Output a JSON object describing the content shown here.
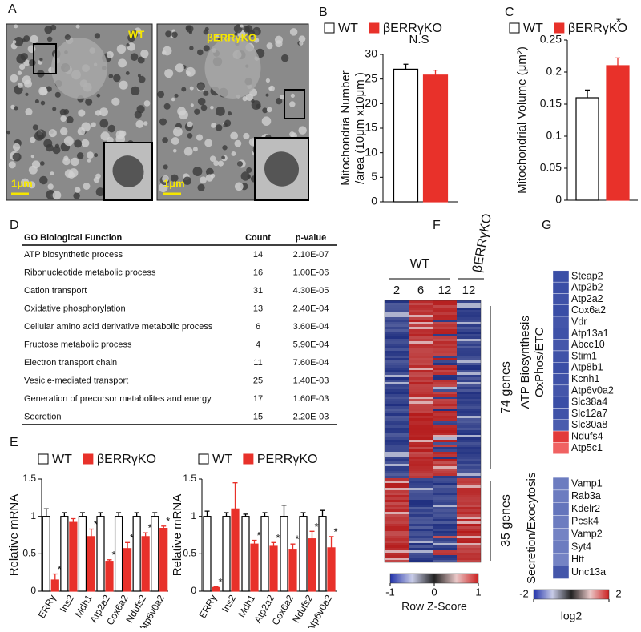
{
  "panel_labels": [
    "A",
    "B",
    "C",
    "D",
    "E",
    "F",
    "G"
  ],
  "micrographs": {
    "labels": [
      "WT",
      "βERRγKO"
    ],
    "scale_bar": "1μm"
  },
  "chart_data": [
    {
      "type": "bar",
      "legend": true,
      "categories": [
        null
      ],
      "ylabel": [
        "Mitochondria Number",
        "/area (10μm x10μm )"
      ],
      "annotation": "N.S",
      "series": [
        {
          "name": "WT",
          "color": "#ffffff",
          "values": [
            27
          ],
          "errors": [
            1
          ]
        },
        {
          "name": "βERRγKO",
          "color": "#e8312a",
          "values": [
            25.8
          ],
          "errors": [
            1
          ]
        }
      ],
      "ylim": [
        0,
        30
      ],
      "yticks": [
        0,
        5,
        10,
        15,
        20,
        25,
        30
      ]
    },
    {
      "type": "bar",
      "legend": true,
      "categories": [
        null
      ],
      "ylabel": [
        "Mitochondrial Volume (μm²)"
      ],
      "annotation": "*",
      "series": [
        {
          "name": "WT",
          "color": "#ffffff",
          "values": [
            0.16
          ],
          "errors": [
            0.012
          ]
        },
        {
          "name": "βERRγKO",
          "color": "#e8312a",
          "values": [
            0.21
          ],
          "errors": [
            0.012
          ]
        }
      ],
      "ylim": [
        0,
        0.25
      ],
      "yticks": [
        0,
        0.05,
        0.1,
        0.15,
        0.2,
        0.25
      ]
    },
    {
      "type": "bar",
      "legend": true,
      "categories": [
        "ERRγ",
        "Ins2",
        "Mdh1",
        "Atp2a2",
        "Cox6a2",
        "Ndufs2",
        "Atp6v0a2"
      ],
      "ylabel": [
        "Relative mRNA"
      ],
      "series": [
        {
          "name": "WT",
          "color": "#ffffff",
          "values": [
            1,
            1,
            1,
            1,
            1,
            1,
            1
          ],
          "errors": [
            0.1,
            0.05,
            0.05,
            0.05,
            0.05,
            0.05,
            0.05
          ]
        },
        {
          "name": "βERRγKO",
          "color": "#e8312a",
          "values": [
            0.15,
            0.92,
            0.73,
            0.4,
            0.57,
            0.73,
            0.84
          ],
          "errors": [
            0.08,
            0.05,
            0.1,
            0.02,
            0.08,
            0.05,
            0.03
          ],
          "significance": [
            "*",
            null,
            "*",
            "*",
            "*",
            "*",
            "*"
          ]
        }
      ],
      "ylim": [
        0,
        1.5
      ],
      "yticks": [
        0,
        0.5,
        1,
        1.5
      ]
    },
    {
      "type": "bar",
      "legend": true,
      "categories": [
        "ERRγ",
        "Ins2",
        "Mdh1",
        "Atp2a2",
        "Cox6a2",
        "Ndufs2",
        "Atp6v0a2"
      ],
      "ylabel": [
        "Relative mRNA"
      ],
      "series": [
        {
          "name": "WT",
          "color": "#ffffff",
          "values": [
            1,
            1,
            1,
            1,
            1,
            1,
            1
          ],
          "errors": [
            0.07,
            0.05,
            0.03,
            0.05,
            0.15,
            0.05,
            0.08
          ]
        },
        {
          "name": "PERRγKO",
          "color": "#e8312a",
          "values": [
            0.05,
            1.1,
            0.63,
            0.6,
            0.55,
            0.7,
            0.58
          ],
          "errors": [
            0.01,
            0.35,
            0.05,
            0.05,
            0.08,
            0.1,
            0.15
          ],
          "significance": [
            "*",
            null,
            "*",
            "*",
            "*",
            "*",
            "*"
          ]
        }
      ],
      "ylim": [
        0,
        1.5
      ],
      "yticks": [
        0,
        0.5,
        1,
        1.5
      ]
    }
  ],
  "table": {
    "header": [
      "GO Biological Function",
      "Count",
      "p-value"
    ],
    "rows": [
      [
        "ATP biosynthetic process",
        14,
        "2.10E-07"
      ],
      [
        "Ribonucleotide metabolic process",
        16,
        "1.00E-06"
      ],
      [
        "Cation transport",
        31,
        "4.30E-05"
      ],
      [
        "Oxidative phosphorylation",
        13,
        "2.40E-04"
      ],
      [
        "Cellular amino acid derivative metabolic process",
        6,
        "3.60E-04"
      ],
      [
        "Fructose metabolic process",
        4,
        "5.90E-04"
      ],
      [
        "Electron transport chain",
        11,
        "7.60E-04"
      ],
      [
        "Vesicle-mediated transport",
        25,
        "1.40E-03"
      ],
      [
        "Generation of precursor metabolites and energy",
        17,
        "1.60E-03"
      ],
      [
        "Secretion",
        15,
        "2.20E-03"
      ]
    ]
  },
  "heatmap": {
    "group_labels": [
      "WT",
      "βERRγKO"
    ],
    "columns": [
      "2",
      "6",
      "12",
      "12"
    ],
    "row_groups": [
      "74 genes",
      "35 genes"
    ],
    "colorbar": {
      "ticks": [
        -1,
        0,
        1
      ],
      "label": "Row Z-Score"
    }
  },
  "gene_panel": {
    "groups": [
      {
        "label": [
          "ATP Biosynthesis",
          "OxPhos/ETC"
        ],
        "genes": [
          "Steap2",
          "Atp2b2",
          "Atp2a2",
          "Cox6a2",
          "Vdr",
          "Atp13a1",
          "Abcc10",
          "Stim1",
          "Atp8b1",
          "Kcnh1",
          "Atp6v0a2",
          "Slc38a4",
          "Slc12a7",
          "Slc30a8",
          "Ndufs4",
          "Atp5c1"
        ],
        "colors": [
          "#3a4ea6",
          "#3a4ea6",
          "#3f52a8",
          "#3a4ea6",
          "#4456aa",
          "#3f52a8",
          "#4456aa",
          "#3f52a8",
          "#3a4ea6",
          "#3f52a8",
          "#4456aa",
          "#3a4ea6",
          "#3f52a8",
          "#4a5cae",
          "#e23a3a",
          "#f06262"
        ]
      },
      {
        "label": [
          "Secretion/Exocytosis"
        ],
        "genes": [
          "Vamp1",
          "Rab3a",
          "Kdelr2",
          "Pcsk4",
          "Vamp2",
          "Syt4",
          "Htt",
          "Unc13a"
        ],
        "colors": [
          "#6c7cc0",
          "#6c7cc0",
          "#6475bc",
          "#6c7cc0",
          "#7483c4",
          "#6c7cc0",
          "#7483c4",
          "#4456aa"
        ]
      }
    ],
    "colorbar": {
      "ticks": [
        -2,
        2
      ],
      "label": "log2"
    }
  }
}
